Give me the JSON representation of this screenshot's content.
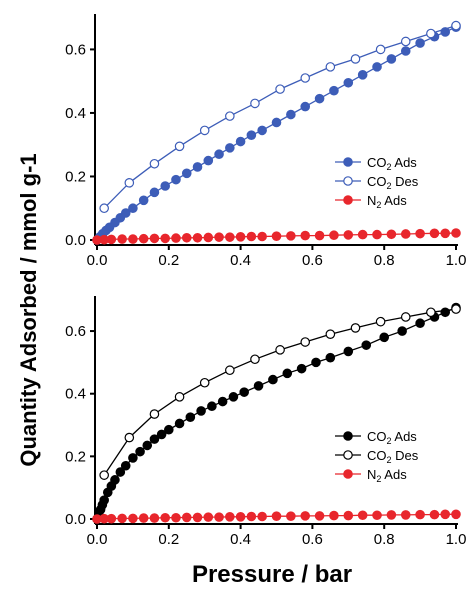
{
  "ylabel": "Quantity Adsorbed / mmol g-1",
  "xlabel": "Pressure / bar",
  "colors": {
    "blue": "#3d5db8",
    "black": "#000000",
    "red": "#e8262c"
  },
  "chart_data": [
    {
      "type": "line",
      "panel": "top",
      "xlim": [
        0,
        1.0
      ],
      "ylim": [
        0,
        0.68
      ],
      "xticks": [
        "0.0",
        "0.2",
        "0.4",
        "0.6",
        "0.8",
        "1.0"
      ],
      "yticks": [
        "0.0",
        "0.2",
        "0.4",
        "0.6"
      ],
      "legend_position": "center-right",
      "series": [
        {
          "name": "CO2 Ads",
          "legend_main": "CO",
          "legend_sub": "2",
          "legend_rest": " Ads",
          "color": "#3d5db8",
          "marker": "filled",
          "x": [
            0.0,
            0.008,
            0.016,
            0.025,
            0.035,
            0.05,
            0.065,
            0.08,
            0.1,
            0.13,
            0.16,
            0.19,
            0.22,
            0.25,
            0.28,
            0.31,
            0.34,
            0.37,
            0.4,
            0.43,
            0.46,
            0.5,
            0.54,
            0.58,
            0.62,
            0.66,
            0.7,
            0.74,
            0.78,
            0.82,
            0.86,
            0.9,
            0.94,
            0.97,
            1.0
          ],
          "y": [
            0.0,
            0.01,
            0.02,
            0.03,
            0.04,
            0.055,
            0.07,
            0.085,
            0.1,
            0.125,
            0.15,
            0.17,
            0.19,
            0.21,
            0.23,
            0.25,
            0.27,
            0.29,
            0.31,
            0.33,
            0.345,
            0.37,
            0.395,
            0.42,
            0.445,
            0.47,
            0.495,
            0.52,
            0.545,
            0.57,
            0.595,
            0.62,
            0.64,
            0.655,
            0.67
          ]
        },
        {
          "name": "CO2 Des",
          "legend_main": "CO",
          "legend_sub": "2",
          "legend_rest": " Des",
          "color": "#3d5db8",
          "marker": "open",
          "x": [
            0.02,
            0.09,
            0.16,
            0.23,
            0.3,
            0.37,
            0.44,
            0.51,
            0.58,
            0.65,
            0.72,
            0.79,
            0.86,
            0.93,
            1.0
          ],
          "y": [
            0.1,
            0.18,
            0.24,
            0.295,
            0.345,
            0.39,
            0.43,
            0.475,
            0.51,
            0.545,
            0.57,
            0.6,
            0.625,
            0.65,
            0.675
          ]
        },
        {
          "name": "N2 Ads",
          "legend_main": "N",
          "legend_sub": "2",
          "legend_rest": " Ads",
          "color": "#e8262c",
          "marker": "filled",
          "x": [
            0.0,
            0.02,
            0.04,
            0.07,
            0.1,
            0.13,
            0.16,
            0.19,
            0.22,
            0.25,
            0.28,
            0.31,
            0.34,
            0.37,
            0.4,
            0.43,
            0.46,
            0.5,
            0.54,
            0.58,
            0.62,
            0.66,
            0.7,
            0.74,
            0.78,
            0.82,
            0.86,
            0.9,
            0.94,
            0.97,
            1.0
          ],
          "y": [
            0.0,
            0.001,
            0.002,
            0.003,
            0.003,
            0.004,
            0.005,
            0.005,
            0.006,
            0.007,
            0.007,
            0.008,
            0.009,
            0.009,
            0.01,
            0.011,
            0.011,
            0.012,
            0.013,
            0.014,
            0.014,
            0.015,
            0.016,
            0.017,
            0.017,
            0.018,
            0.019,
            0.02,
            0.021,
            0.021,
            0.022
          ]
        }
      ]
    },
    {
      "type": "line",
      "panel": "bottom",
      "xlim": [
        0,
        1.0
      ],
      "ylim": [
        0,
        0.68
      ],
      "xticks": [
        "0.0",
        "0.2",
        "0.4",
        "0.6",
        "0.8",
        "1.0"
      ],
      "yticks": [
        "0.0",
        "0.2",
        "0.4",
        "0.6"
      ],
      "legend_position": "center-right",
      "series": [
        {
          "name": "CO2 Ads",
          "legend_main": "CO",
          "legend_sub": "2",
          "legend_rest": " Ads",
          "color": "#000000",
          "marker": "filled",
          "x": [
            0.0,
            0.005,
            0.01,
            0.015,
            0.02,
            0.03,
            0.04,
            0.05,
            0.065,
            0.08,
            0.1,
            0.12,
            0.14,
            0.16,
            0.18,
            0.2,
            0.23,
            0.26,
            0.29,
            0.32,
            0.35,
            0.38,
            0.41,
            0.45,
            0.49,
            0.53,
            0.57,
            0.61,
            0.65,
            0.7,
            0.75,
            0.8,
            0.85,
            0.9,
            0.94,
            0.97,
            1.0
          ],
          "y": [
            0.0,
            0.015,
            0.03,
            0.045,
            0.06,
            0.085,
            0.105,
            0.125,
            0.15,
            0.17,
            0.195,
            0.215,
            0.235,
            0.255,
            0.27,
            0.285,
            0.305,
            0.325,
            0.345,
            0.36,
            0.375,
            0.39,
            0.405,
            0.425,
            0.445,
            0.465,
            0.48,
            0.5,
            0.515,
            0.535,
            0.555,
            0.58,
            0.6,
            0.625,
            0.645,
            0.66,
            0.675
          ]
        },
        {
          "name": "CO2 Des",
          "legend_main": "CO",
          "legend_sub": "2",
          "legend_rest": " Des",
          "color": "#000000",
          "marker": "open",
          "x": [
            0.02,
            0.09,
            0.16,
            0.23,
            0.3,
            0.37,
            0.44,
            0.51,
            0.58,
            0.65,
            0.72,
            0.79,
            0.86,
            0.93,
            1.0
          ],
          "y": [
            0.14,
            0.26,
            0.335,
            0.39,
            0.435,
            0.475,
            0.51,
            0.54,
            0.565,
            0.59,
            0.61,
            0.63,
            0.645,
            0.66,
            0.67
          ]
        },
        {
          "name": "N2 Ads",
          "legend_main": "N",
          "legend_sub": "2",
          "legend_rest": " Ads",
          "color": "#e8262c",
          "marker": "filled",
          "x": [
            0.0,
            0.02,
            0.04,
            0.07,
            0.1,
            0.13,
            0.16,
            0.19,
            0.22,
            0.25,
            0.28,
            0.31,
            0.34,
            0.37,
            0.4,
            0.43,
            0.46,
            0.5,
            0.54,
            0.58,
            0.62,
            0.66,
            0.7,
            0.74,
            0.78,
            0.82,
            0.86,
            0.9,
            0.94,
            0.97,
            1.0
          ],
          "y": [
            0.0,
            0.001,
            0.001,
            0.002,
            0.002,
            0.003,
            0.003,
            0.004,
            0.004,
            0.005,
            0.005,
            0.006,
            0.006,
            0.007,
            0.007,
            0.008,
            0.008,
            0.009,
            0.009,
            0.01,
            0.01,
            0.011,
            0.011,
            0.012,
            0.012,
            0.013,
            0.013,
            0.014,
            0.014,
            0.015,
            0.015
          ]
        }
      ]
    }
  ]
}
